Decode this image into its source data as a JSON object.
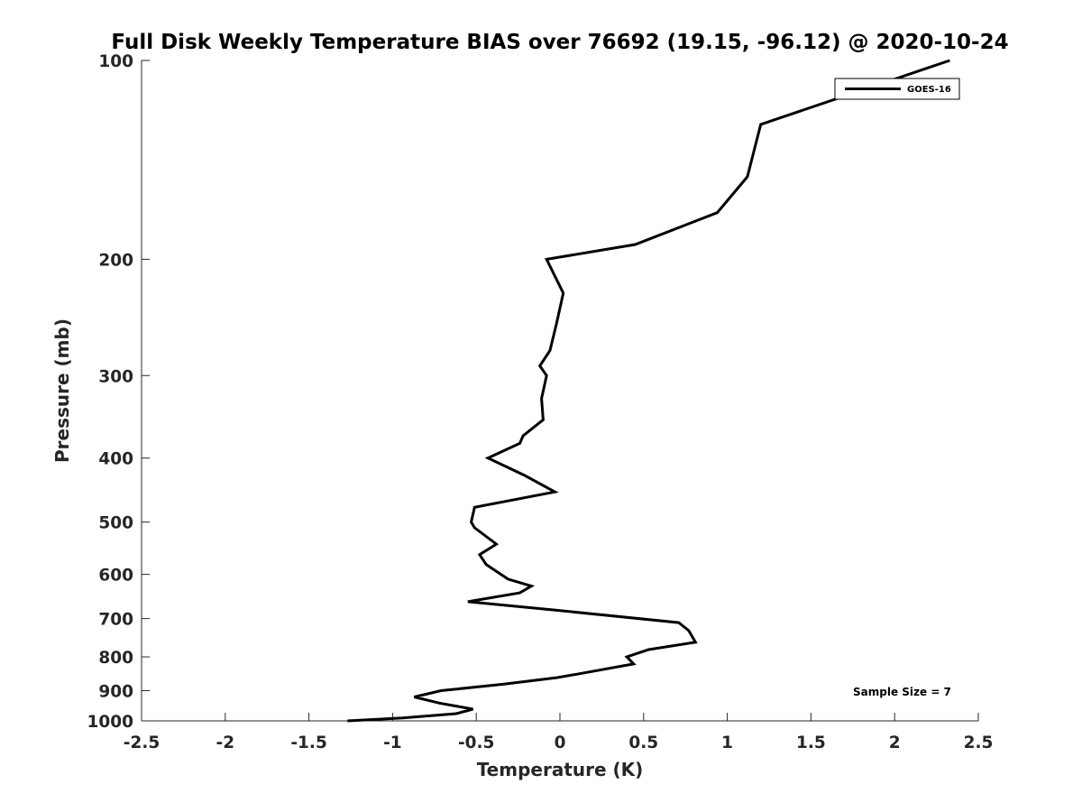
{
  "chart_data": {
    "type": "line",
    "title": "Full Disk Weekly Temperature BIAS over 76692 (19.15, -96.12) @ 2020-10-24",
    "xlabel": "Temperature (K)",
    "ylabel": "Pressure (mb)",
    "xlim": [
      -2.5,
      2.5
    ],
    "ylim": [
      100,
      1000
    ],
    "y_scale": "log",
    "y_reversed": true,
    "grid": false,
    "legend_position": "top-right",
    "x_ticks": [
      "-2.5",
      "-2",
      "-1.5",
      "-1",
      "-0.5",
      "0",
      "0.5",
      "1",
      "1.5",
      "2",
      "2.5"
    ],
    "x_tick_values": [
      -2.5,
      -2,
      -1.5,
      -1,
      -0.5,
      0,
      0.5,
      1,
      1.5,
      2,
      2.5
    ],
    "y_ticks": [
      "100",
      "200",
      "300",
      "400",
      "500",
      "600",
      "700",
      "800",
      "900",
      "1000"
    ],
    "y_tick_values": [
      100,
      200,
      300,
      400,
      500,
      600,
      700,
      800,
      900,
      1000
    ],
    "annotation": "Sample Size = 7",
    "series": [
      {
        "name": "GOES-16",
        "color": "#000000",
        "points": [
          {
            "x": 2.33,
            "y": 100
          },
          {
            "x": 1.2,
            "y": 125
          },
          {
            "x": 1.12,
            "y": 150
          },
          {
            "x": 0.94,
            "y": 170
          },
          {
            "x": 0.45,
            "y": 190
          },
          {
            "x": -0.08,
            "y": 200
          },
          {
            "x": 0.02,
            "y": 225
          },
          {
            "x": -0.02,
            "y": 250
          },
          {
            "x": -0.06,
            "y": 275
          },
          {
            "x": -0.12,
            "y": 290
          },
          {
            "x": -0.08,
            "y": 300
          },
          {
            "x": -0.11,
            "y": 325
          },
          {
            "x": -0.1,
            "y": 350
          },
          {
            "x": -0.22,
            "y": 370
          },
          {
            "x": -0.24,
            "y": 380
          },
          {
            "x": -0.43,
            "y": 400
          },
          {
            "x": -0.21,
            "y": 425
          },
          {
            "x": -0.03,
            "y": 450
          },
          {
            "x": -0.51,
            "y": 475
          },
          {
            "x": -0.53,
            "y": 500
          },
          {
            "x": -0.51,
            "y": 510
          },
          {
            "x": -0.38,
            "y": 540
          },
          {
            "x": -0.48,
            "y": 560
          },
          {
            "x": -0.44,
            "y": 580
          },
          {
            "x": -0.31,
            "y": 610
          },
          {
            "x": -0.17,
            "y": 625
          },
          {
            "x": -0.24,
            "y": 640
          },
          {
            "x": -0.55,
            "y": 660
          },
          {
            "x": -0.02,
            "y": 680
          },
          {
            "x": 0.71,
            "y": 710
          },
          {
            "x": 0.77,
            "y": 730
          },
          {
            "x": 0.81,
            "y": 760
          },
          {
            "x": 0.53,
            "y": 780
          },
          {
            "x": 0.4,
            "y": 800
          },
          {
            "x": 0.44,
            "y": 820
          },
          {
            "x": 0.1,
            "y": 850
          },
          {
            "x": -0.02,
            "y": 860
          },
          {
            "x": -0.34,
            "y": 880
          },
          {
            "x": -0.71,
            "y": 900
          },
          {
            "x": -0.87,
            "y": 920
          },
          {
            "x": -0.72,
            "y": 940
          },
          {
            "x": -0.52,
            "y": 960
          },
          {
            "x": -0.62,
            "y": 975
          },
          {
            "x": -0.94,
            "y": 990
          },
          {
            "x": -1.27,
            "y": 1000
          }
        ]
      }
    ]
  }
}
